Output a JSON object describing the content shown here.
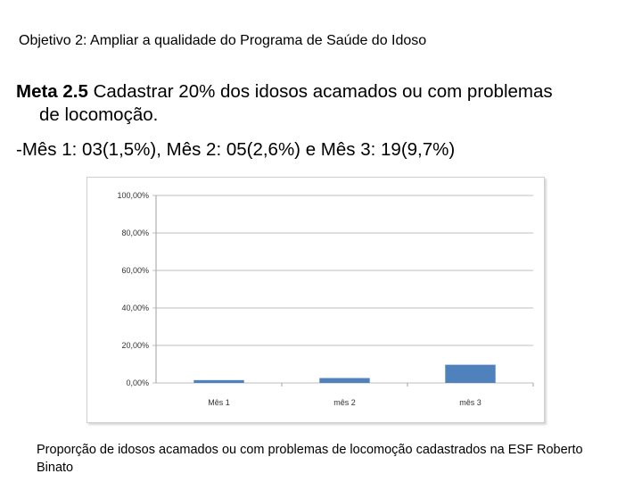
{
  "objective": "Objetivo 2: Ampliar a qualidade do Programa de Saúde do Idoso",
  "meta": {
    "label": "Meta 2.5",
    "text_line1": " Cadastrar 20% dos idosos acamados ou com problemas",
    "text_line2": "de locomoção."
  },
  "months_line": "-Mês 1: 03(1,5%), Mês 2: 05(2,6%) e Mês 3: 19(9,7%)",
  "caption": "Proporção de idosos acamados ou com problemas de locomoção cadastrados na ESF Roberto Binato",
  "chart_data": {
    "type": "bar",
    "categories": [
      "Mês 1",
      "mês 2",
      "mês 3"
    ],
    "values": [
      1.5,
      2.6,
      9.7
    ],
    "ylim": [
      0,
      100
    ],
    "yticks": [
      "0,00%",
      "20,00%",
      "40,00%",
      "60,00%",
      "80,00%",
      "100,00%"
    ],
    "grid": true,
    "legend": "none",
    "bar_color": "#4f81bd"
  }
}
